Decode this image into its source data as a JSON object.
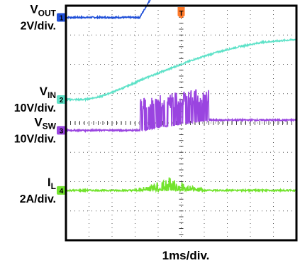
{
  "chart_data": {
    "type": "line",
    "title": "",
    "xlabel": "1ms/div.",
    "ylabel": "",
    "grid": true,
    "time_divisions": 10,
    "amplitude_divisions": 8,
    "trigger_marker": "T",
    "channels": [
      {
        "id": "1",
        "name_main": "V",
        "name_sub": "OUT",
        "scale": "2V/div.",
        "color": "#1f4fd8",
        "zero_level_div": 3.6,
        "x_div": [
          0,
          3.2,
          4.4,
          5.0,
          8.3,
          10
        ],
        "y_div": [
          3.6,
          3.6,
          5.2,
          6.6,
          6.6,
          6.6
        ]
      },
      {
        "id": "2",
        "name_main": "V",
        "name_sub": "IN",
        "scale": "10V/div.",
        "color": "#5ee2c8",
        "zero_level_div": 0.8,
        "x_div": [
          0,
          0.8,
          1.5,
          2.5,
          3.5,
          4.5,
          5.5,
          6.5,
          7.5,
          8.5,
          10
        ],
        "y_div": [
          0.8,
          0.8,
          0.9,
          1.2,
          1.55,
          1.85,
          2.15,
          2.4,
          2.6,
          2.75,
          2.85
        ]
      },
      {
        "id": "3",
        "name_main": "V",
        "name_sub": "SW",
        "scale": "10V/div.",
        "color": "#9a44e0",
        "zero_level_div": -0.25,
        "x_div": [
          0,
          3.2,
          6.2,
          10
        ],
        "y_div": [
          -0.25,
          -0.25,
          0.1,
          0.1
        ],
        "switching_region_div": [
          3.2,
          6.2
        ]
      },
      {
        "id": "4",
        "name_main": "I",
        "name_sub": "L",
        "scale": "2A/div.",
        "color": "#72e32c",
        "zero_level_div": -2.3,
        "x_div": [
          0,
          3.0,
          10
        ],
        "y_div": [
          -2.3,
          -2.3,
          -2.3
        ],
        "ripple_region_div": [
          3.0,
          6.0
        ]
      }
    ]
  }
}
